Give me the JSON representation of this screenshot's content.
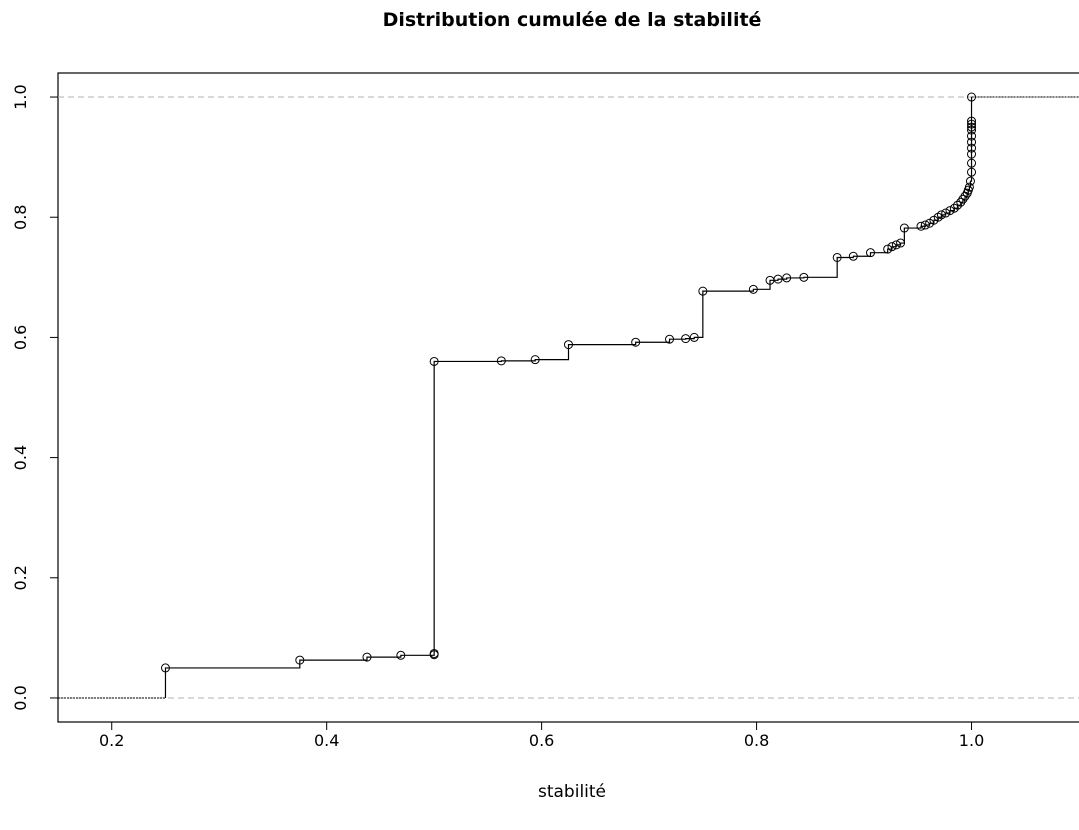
{
  "chart_data": {
    "type": "line",
    "subtype": "step-ecdf",
    "title": "Distribution cumulée de la stabilité",
    "xlabel": "stabilité",
    "ylabel": "",
    "xlim": [
      0.15,
      1.1
    ],
    "ylim": [
      -0.04,
      1.04
    ],
    "x_ticks": [
      0.2,
      0.4,
      0.6,
      0.8,
      1.0
    ],
    "x_tick_labels": [
      "0.2",
      "0.4",
      "0.6",
      "0.8",
      "1.0"
    ],
    "y_ticks": [
      0.0,
      0.2,
      0.4,
      0.6,
      0.8,
      1.0
    ],
    "y_tick_labels": [
      "0.0",
      "0.2",
      "0.4",
      "0.6",
      "0.8",
      "1.0"
    ],
    "reference_lines_y": [
      0.0,
      1.0
    ],
    "grid": false,
    "legend": "none",
    "colors": {
      "line": "#000000",
      "reference": "#b0b0b0",
      "background": "#ffffff"
    },
    "series": [
      {
        "x": [
          0.25,
          0.375,
          0.4375,
          0.469,
          0.5,
          0.5,
          0.5,
          0.5625,
          0.594,
          0.625,
          0.6875,
          0.719,
          0.734,
          0.742,
          0.75,
          0.797,
          0.8125,
          0.82,
          0.828,
          0.844,
          0.875,
          0.89,
          0.906,
          0.922,
          0.926,
          0.93,
          0.934,
          0.9375,
          0.953,
          0.957,
          0.961,
          0.965,
          0.969,
          0.972,
          0.976,
          0.98,
          0.984,
          0.987,
          0.99,
          0.992,
          0.994,
          0.996,
          0.997,
          0.998,
          0.999,
          1.0,
          1.0,
          1.0,
          1.0,
          1.0,
          1.0,
          1.0,
          1.0,
          1.0,
          1.0,
          1.0
        ],
        "y": [
          0.05,
          0.063,
          0.068,
          0.071,
          0.072,
          0.074,
          0.56,
          0.561,
          0.563,
          0.588,
          0.592,
          0.597,
          0.598,
          0.6,
          0.677,
          0.68,
          0.695,
          0.697,
          0.699,
          0.7,
          0.733,
          0.735,
          0.741,
          0.747,
          0.751,
          0.754,
          0.757,
          0.782,
          0.785,
          0.787,
          0.79,
          0.795,
          0.8,
          0.804,
          0.807,
          0.811,
          0.815,
          0.82,
          0.825,
          0.83,
          0.835,
          0.84,
          0.845,
          0.85,
          0.86,
          0.875,
          0.89,
          0.905,
          0.915,
          0.925,
          0.935,
          0.945,
          0.95,
          0.955,
          0.96,
          1.0
        ]
      }
    ]
  }
}
